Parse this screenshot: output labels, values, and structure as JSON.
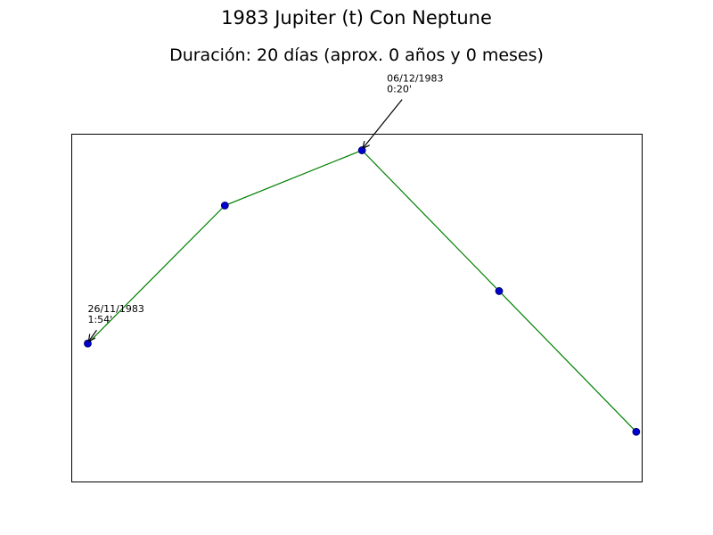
{
  "chart_data": {
    "type": "line",
    "title": "1983 Jupiter (t) Con Neptune",
    "subtitle": "Duración: 20 días (aprox. 0 años y 0 meses)",
    "xlabel": "",
    "ylabel": "",
    "grid": false,
    "line_color": "#008000",
    "marker_color": "#0000cc",
    "series": [
      {
        "x": [
          0,
          5,
          10,
          15,
          20
        ],
        "y": [
          -0.15,
          0.35,
          0.55,
          0.04,
          -0.47
        ]
      }
    ],
    "xlim": [
      -0.6,
      20.2
    ],
    "ylim": [
      -0.65,
      0.61
    ],
    "annotations": [
      {
        "x": 0,
        "y": -0.15,
        "date": "26/11/1983",
        "time": "1:54'"
      },
      {
        "x": 10,
        "y": 0.55,
        "date": "06/12/1983",
        "time": "0:20'"
      }
    ]
  }
}
